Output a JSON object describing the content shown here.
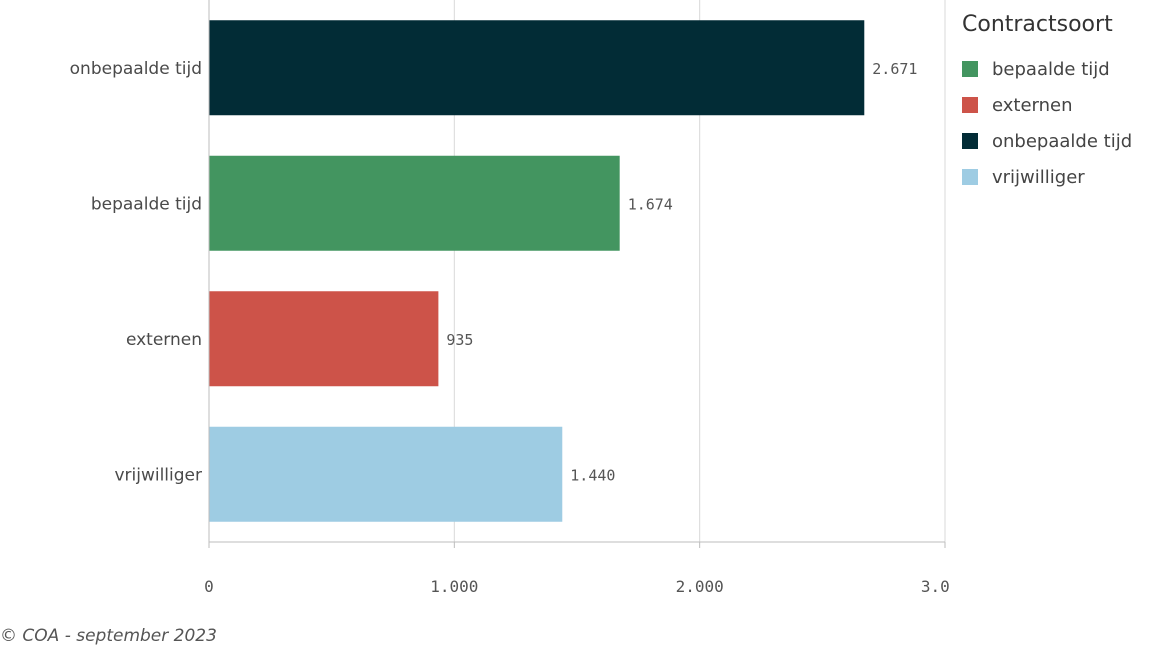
{
  "chart_data": {
    "type": "bar",
    "orientation": "horizontal",
    "categories": [
      "onbepaalde tijd",
      "bepaalde tijd",
      "externen",
      "vrijwilliger"
    ],
    "values": [
      2671,
      1674,
      935,
      1440
    ],
    "value_labels": [
      "2.671",
      "1.674",
      "935",
      "1.440"
    ],
    "colors": [
      "#022c36",
      "#439560",
      "#cd5349",
      "#9ecce3"
    ],
    "xlim": [
      0,
      3000
    ],
    "x_ticks": [
      0,
      1000,
      2000,
      3000
    ],
    "x_tick_labels": [
      "0",
      "1.000",
      "2.000",
      "3.000"
    ],
    "grid": true,
    "legend": {
      "title": "Contractsoort",
      "position": "right",
      "items": [
        {
          "label": "bepaalde tijd",
          "color": "#439560"
        },
        {
          "label": "externen",
          "color": "#cd5349"
        },
        {
          "label": "onbepaalde tijd",
          "color": "#022c36"
        },
        {
          "label": "vrijwilliger",
          "color": "#9ecce3"
        }
      ]
    }
  },
  "footer": {
    "source": "© COA - september 2023"
  }
}
